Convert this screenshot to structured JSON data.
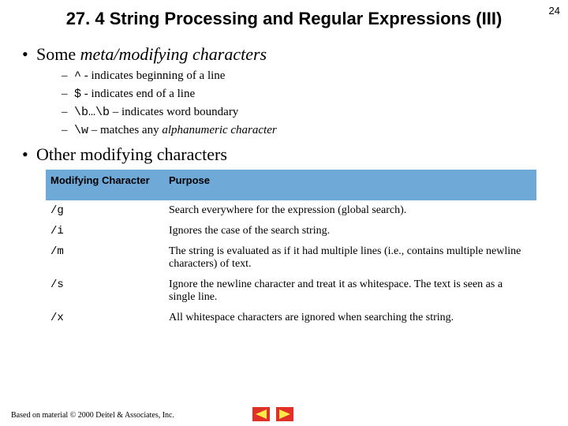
{
  "page_number": "24",
  "title": "27. 4 String Processing and Regular Expressions (III)",
  "bullet1": {
    "prefix": "Some ",
    "italic": "meta/modifying characters"
  },
  "sub": [
    {
      "code": "^",
      "rest": " - indicates beginning of a line"
    },
    {
      "code": "$",
      "rest": " - indicates end of a line"
    },
    {
      "code": "\\b…\\b",
      "rest": " – indicates word boundary"
    },
    {
      "code": "\\w",
      "rest_pre": " – matches any ",
      "rest_italic": "alphanumeric character"
    }
  ],
  "bullet2": "Other modifying characters",
  "table": {
    "header_bg": "#6fa9d8",
    "columns": [
      "Modifying Character",
      "Purpose"
    ],
    "rows": [
      [
        "/g",
        "Search everywhere for the expression (global search)."
      ],
      [
        "/i",
        "Ignores the case of the search string."
      ],
      [
        "/m",
        "The string is evaluated as if it had multiple lines (i.e., contains multiple newline characters) of text."
      ],
      [
        "/s",
        "Ignore the newline character and treat it as whitespace. The text is seen as a single line."
      ],
      [
        "/x",
        "All whitespace characters are ignored when searching the string."
      ]
    ]
  },
  "footer": "Based on material © 2000 Deitel & Associates, Inc.",
  "colors": {
    "arrow_bg": "#e03028",
    "arrow_fg": "#ffe94a"
  }
}
